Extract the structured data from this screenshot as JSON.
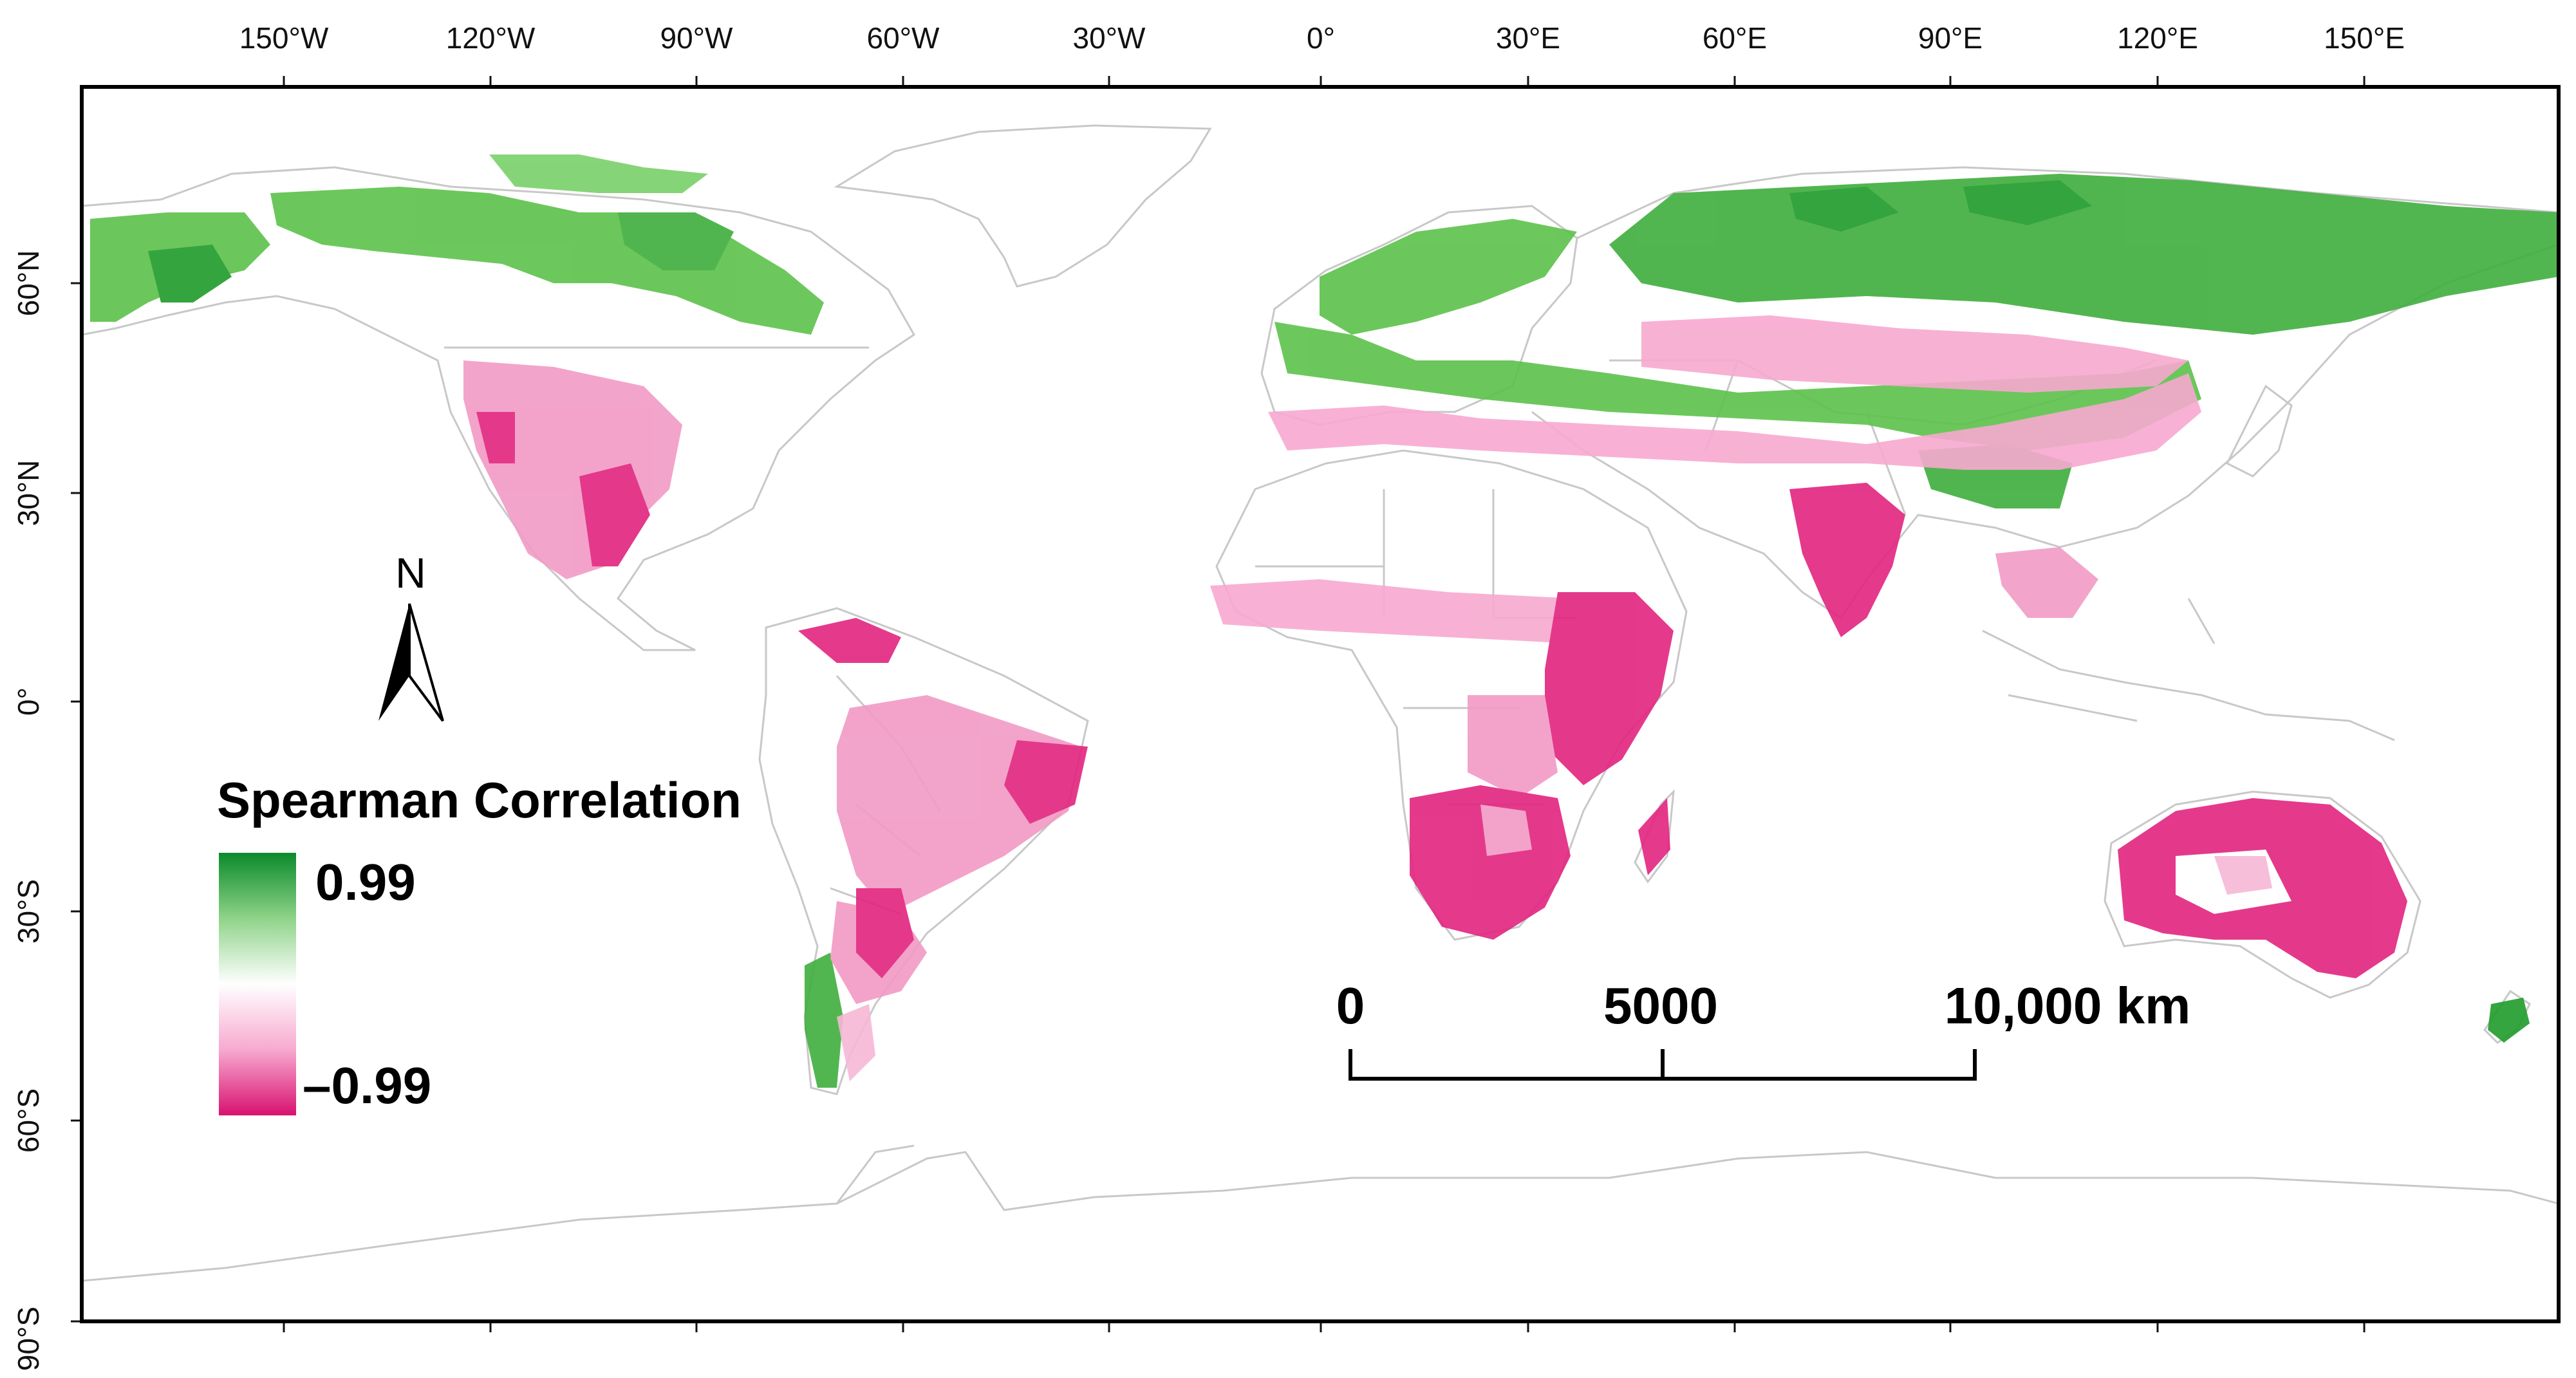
{
  "map": {
    "longitude_ticks": [
      "150°W",
      "120°W",
      "90°W",
      "60°W",
      "30°W",
      "0°",
      "30°E",
      "60°E",
      "90°E",
      "120°E",
      "150°E"
    ],
    "latitude_ticks": [
      "60°N",
      "30°N",
      "0°",
      "30°S",
      "60°S",
      "90°S"
    ]
  },
  "legend": {
    "title": "Spearman Correlation",
    "max_label": "0.99",
    "min_label": "–0.99",
    "colors": {
      "high": "#0a8a2a",
      "mid": "#ffffff",
      "low": "#d8126f"
    }
  },
  "scale_bar": {
    "labels": [
      "0",
      "5000",
      "10,000 km"
    ]
  },
  "north_arrow": {
    "letter": "N"
  },
  "colors": {
    "positive_green": "#5cc24a",
    "dark_green": "#1f9b2a",
    "light_pink": "#f7a9cf",
    "magenta": "#e2247f",
    "country_border": "#c8c8c8"
  }
}
